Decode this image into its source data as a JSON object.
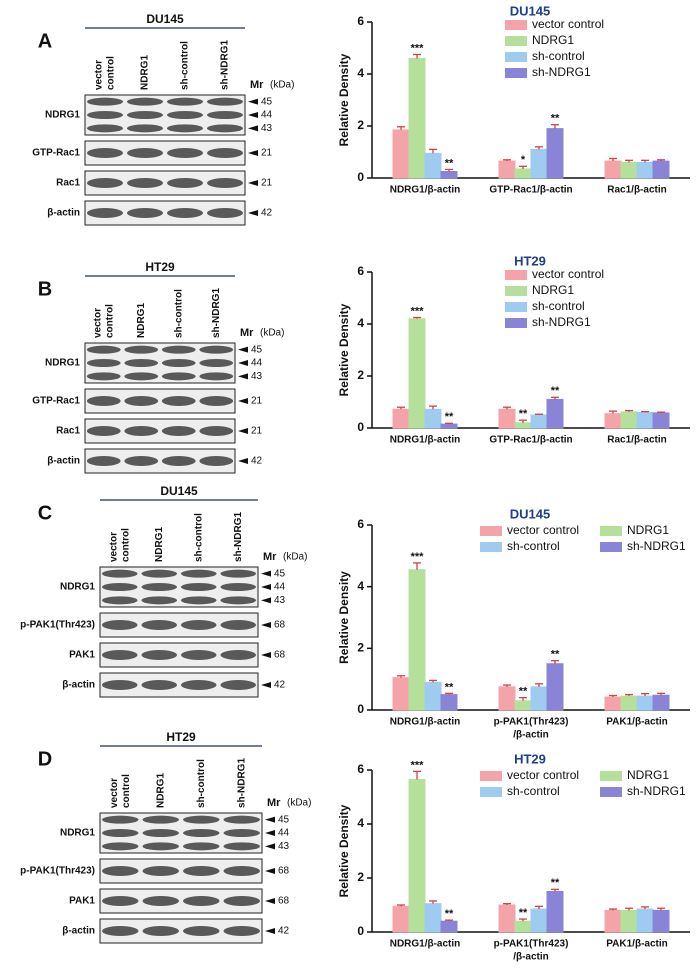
{
  "blots": [
    {
      "letter": "A",
      "cell_line": "DU145",
      "lanes": [
        [
          "vector",
          "control"
        ],
        [
          "NDRG1"
        ],
        [
          "sh-control"
        ],
        [
          "sh-NDRG1"
        ]
      ],
      "mr": "Mr",
      "kda": "(kDa)",
      "rows": [
        {
          "label": "NDRG1",
          "markers": [
            "45",
            "44",
            "43"
          ]
        },
        {
          "label": "GTP-Rac1",
          "markers": [
            "21"
          ]
        },
        {
          "label": "Rac1",
          "markers": [
            "21"
          ]
        },
        {
          "label": "β-actin",
          "markers": [
            "42"
          ]
        }
      ]
    },
    {
      "letter": "B",
      "cell_line": "HT29",
      "lanes": [
        [
          "vector",
          "control"
        ],
        [
          "NDRG1"
        ],
        [
          "sh-control"
        ],
        [
          "sh-NDRG1"
        ]
      ],
      "mr": "Mr",
      "kda": "(kDa)",
      "rows": [
        {
          "label": "NDRG1",
          "markers": [
            "45",
            "44",
            "43"
          ]
        },
        {
          "label": "GTP-Rac1",
          "markers": [
            "21"
          ]
        },
        {
          "label": "Rac1",
          "markers": [
            "21"
          ]
        },
        {
          "label": "β-actin",
          "markers": [
            "42"
          ]
        }
      ]
    },
    {
      "letter": "C",
      "cell_line": "DU145",
      "lanes": [
        [
          "vector",
          "control"
        ],
        [
          "NDRG1"
        ],
        [
          "sh-control"
        ],
        [
          "sh-NDRG1"
        ]
      ],
      "mr": "Mr",
      "kda": "(kDa)",
      "rows": [
        {
          "label": "NDRG1",
          "markers": [
            "45",
            "44",
            "43"
          ]
        },
        {
          "label": "p-PAK1(Thr423)",
          "markers": [
            "68"
          ]
        },
        {
          "label": "PAK1",
          "markers": [
            "68"
          ]
        },
        {
          "label": "β-actin",
          "markers": [
            "42"
          ]
        }
      ]
    },
    {
      "letter": "D",
      "cell_line": "HT29",
      "lanes": [
        [
          "vector",
          "control"
        ],
        [
          "NDRG1"
        ],
        [
          "sh-control"
        ],
        [
          "sh-NDRG1"
        ]
      ],
      "mr": "Mr",
      "kda": "(kDa)",
      "rows": [
        {
          "label": "NDRG1",
          "markers": [
            "45",
            "44",
            "43"
          ]
        },
        {
          "label": "p-PAK1(Thr423)",
          "markers": [
            "68"
          ]
        },
        {
          "label": "PAK1",
          "markers": [
            "68"
          ]
        },
        {
          "label": "β-actin",
          "markers": [
            "42"
          ]
        }
      ]
    }
  ],
  "chart_data": [
    {
      "type": "bar",
      "title": "DU145",
      "ylabel": "Relative Density",
      "categories": [
        [
          "NDRG1/β-actin"
        ],
        [
          "GTP-Rac1/β-actin"
        ],
        [
          "Rac1/β-actin"
        ]
      ],
      "ylim": [
        0,
        6
      ],
      "yticks": [
        0,
        2,
        4,
        6
      ],
      "series": [
        {
          "name": "vector control",
          "color": "#f4a3a8",
          "values": [
            1.85,
            0.65,
            0.65
          ],
          "errors": [
            0.12,
            0.05,
            0.1
          ]
        },
        {
          "name": "NDRG1",
          "color": "#b5e09c",
          "values": [
            4.6,
            0.35,
            0.6
          ],
          "errors": [
            0.15,
            0.1,
            0.08
          ]
        },
        {
          "name": "sh-control",
          "color": "#9fcbf0",
          "values": [
            0.95,
            1.1,
            0.6
          ],
          "errors": [
            0.15,
            0.1,
            0.08
          ]
        },
        {
          "name": "sh-NDRG1",
          "color": "#8a84d6",
          "values": [
            0.25,
            1.9,
            0.65
          ],
          "errors": [
            0.08,
            0.15,
            0.05
          ]
        }
      ],
      "annotations": [
        {
          "text": "***",
          "series": 1,
          "category": 0
        },
        {
          "text": "*",
          "series": 1,
          "category": 1
        },
        {
          "text": "**",
          "series": 3,
          "category": 0
        },
        {
          "text": "**",
          "series": 3,
          "category": 1
        }
      ]
    },
    {
      "type": "bar",
      "title": "HT29",
      "ylabel": "Relative Density",
      "categories": [
        [
          "NDRG1/β-actin"
        ],
        [
          "GTP-Rac1/β-actin"
        ],
        [
          "Rac1/β-actin"
        ]
      ],
      "ylim": [
        0,
        6
      ],
      "yticks": [
        0,
        2,
        4,
        6
      ],
      "series": [
        {
          "name": "vector control",
          "color": "#f4a3a8",
          "values": [
            0.72,
            0.72,
            0.55
          ],
          "errors": [
            0.08,
            0.08,
            0.1
          ]
        },
        {
          "name": "NDRG1",
          "color": "#b5e09c",
          "values": [
            4.2,
            0.2,
            0.62
          ],
          "errors": [
            0.05,
            0.1,
            0.05
          ]
        },
        {
          "name": "sh-control",
          "color": "#9fcbf0",
          "values": [
            0.72,
            0.5,
            0.6
          ],
          "errors": [
            0.12,
            0.03,
            0.03
          ]
        },
        {
          "name": "sh-NDRG1",
          "color": "#8a84d6",
          "values": [
            0.15,
            1.1,
            0.58
          ],
          "errors": [
            0.03,
            0.08,
            0.03
          ]
        }
      ],
      "annotations": [
        {
          "text": "***",
          "series": 1,
          "category": 0
        },
        {
          "text": "**",
          "series": 1,
          "category": 1
        },
        {
          "text": "**",
          "series": 3,
          "category": 0
        },
        {
          "text": "**",
          "series": 3,
          "category": 1
        }
      ]
    },
    {
      "type": "bar",
      "title": "DU145",
      "ylabel": "Relative Density",
      "categories": [
        [
          "NDRG1/β-actin"
        ],
        [
          "p-PAK1(Thr423)",
          "/β-actin"
        ],
        [
          "PAK1/β-actin"
        ]
      ],
      "ylim": [
        0,
        6
      ],
      "yticks": [
        0,
        2,
        4,
        6
      ],
      "series": [
        {
          "name": "vector control",
          "color": "#f4a3a8",
          "values": [
            1.05,
            0.75,
            0.42
          ],
          "errors": [
            0.06,
            0.06,
            0.05
          ]
        },
        {
          "name": "NDRG1",
          "color": "#b5e09c",
          "values": [
            4.55,
            0.3,
            0.45
          ],
          "errors": [
            0.22,
            0.1,
            0.05
          ]
        },
        {
          "name": "sh-control",
          "color": "#9fcbf0",
          "values": [
            0.9,
            0.75,
            0.45
          ],
          "errors": [
            0.06,
            0.1,
            0.08
          ]
        },
        {
          "name": "sh-NDRG1",
          "color": "#8a84d6",
          "values": [
            0.5,
            1.5,
            0.48
          ],
          "errors": [
            0.04,
            0.1,
            0.06
          ]
        }
      ],
      "annotations": [
        {
          "text": "***",
          "series": 1,
          "category": 0
        },
        {
          "text": "**",
          "series": 1,
          "category": 1
        },
        {
          "text": "**",
          "series": 3,
          "category": 0
        },
        {
          "text": "**",
          "series": 3,
          "category": 1
        }
      ]
    },
    {
      "type": "bar",
      "title": "HT29",
      "ylabel": "Relative Density",
      "categories": [
        [
          "NDRG1/β-actin"
        ],
        [
          "p-PAK1(Thr423)",
          "/β-actin"
        ],
        [
          "PAK1/β-actin"
        ]
      ],
      "ylim": [
        0,
        6
      ],
      "yticks": [
        0,
        2,
        4,
        6
      ],
      "series": [
        {
          "name": "vector control",
          "color": "#f4a3a8",
          "values": [
            0.95,
            1.0,
            0.8
          ],
          "errors": [
            0.05,
            0.05,
            0.05
          ]
        },
        {
          "name": "NDRG1",
          "color": "#b5e09c",
          "values": [
            5.65,
            0.4,
            0.8
          ],
          "errors": [
            0.3,
            0.08,
            0.08
          ]
        },
        {
          "name": "sh-control",
          "color": "#9fcbf0",
          "values": [
            1.05,
            0.85,
            0.85
          ],
          "errors": [
            0.1,
            0.1,
            0.08
          ]
        },
        {
          "name": "sh-NDRG1",
          "color": "#8a84d6",
          "values": [
            0.4,
            1.5,
            0.8
          ],
          "errors": [
            0.04,
            0.08,
            0.08
          ]
        }
      ],
      "annotations": [
        {
          "text": "***",
          "series": 1,
          "category": 0
        },
        {
          "text": "**",
          "series": 1,
          "category": 1
        },
        {
          "text": "**",
          "series": 3,
          "category": 0
        },
        {
          "text": "**",
          "series": 3,
          "category": 1
        }
      ]
    }
  ]
}
